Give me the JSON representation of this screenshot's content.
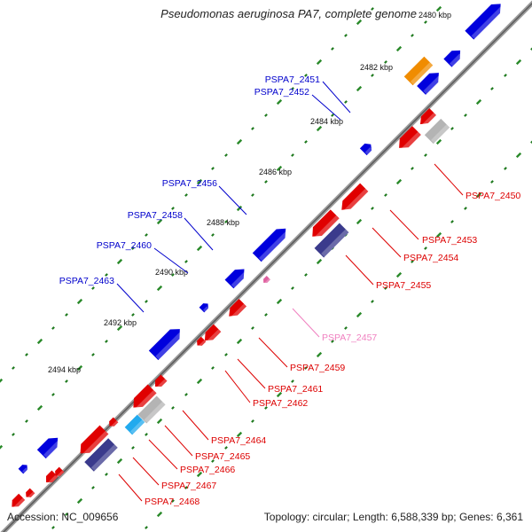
{
  "title": "Pseudomonas aeruginosa PA7, complete genome",
  "footer": {
    "accession": "Accession: NC_009656",
    "topology": "Topology: circular; Length: 6,588,339 bp; Genes: 6,361"
  },
  "colors": {
    "backbone": "#7a7a7a",
    "forward_gene": "#0000dd",
    "reverse_gene": "#e00000",
    "pseudogene": "#e060a0",
    "rna_orange": "#f08c00",
    "misc_gray": "#b4b4b4",
    "misc_navy": "#3a3a8c",
    "misc_cyan": "#22aaee",
    "tick_dots": "#1a8a1a",
    "forward_label": "#0000cc",
    "reverse_label": "#dd0000",
    "pseudo_label": "#f080c0"
  },
  "scale_labels": [
    "2480 kbp",
    "2482 kbp",
    "2484 kbp",
    "2486 kbp",
    "2488 kbp",
    "2490 kbp",
    "2492 kbp",
    "2494 kbp"
  ],
  "forward_genes": [
    "PSPA7_2451",
    "PSPA7_2452",
    "PSPA7_2456",
    "PSPA7_2458",
    "PSPA7_2460",
    "PSPA7_2463"
  ],
  "reverse_genes": [
    "PSPA7_2450",
    "PSPA7_2453",
    "PSPA7_2454",
    "PSPA7_2455",
    "PSPA7_2457",
    "PSPA7_2459",
    "PSPA7_2461",
    "PSPA7_2462",
    "PSPA7_2464",
    "PSPA7_2465",
    "PSPA7_2466",
    "PSPA7_2467",
    "PSPA7_2468"
  ]
}
